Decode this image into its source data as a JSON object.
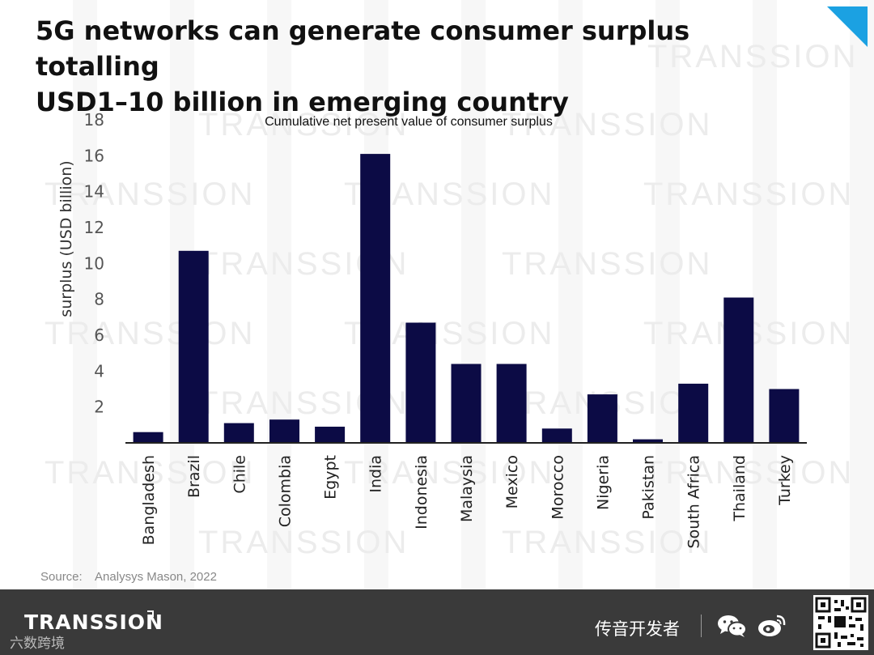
{
  "header": {
    "title_line1": "5G networks can generate consumer surplus totalling",
    "title_line2": "USD1–10 billion in emerging country"
  },
  "watermark_text": "TRANSSION",
  "chart_data": {
    "type": "bar",
    "title": "Cumulative net present value of consumer surplus",
    "xlabel": "",
    "ylabel": "surplus (USD billion)",
    "ylim": [
      0,
      18
    ],
    "yticks": [
      2,
      4,
      6,
      8,
      10,
      12,
      14,
      16,
      18
    ],
    "grid": false,
    "bar_color": "#0c0b45",
    "categories": [
      "Bangladesh",
      "Brazil",
      "Chile",
      "Colombia",
      "Egypt",
      "India",
      "Indonesia",
      "Malaysia",
      "Mexico",
      "Morocco",
      "Nigeria",
      "Pakistan",
      "South Africa",
      "Thailand",
      "Turkey"
    ],
    "values": [
      0.6,
      10.7,
      1.1,
      1.3,
      0.9,
      16.1,
      6.7,
      4.4,
      4.4,
      0.8,
      2.7,
      0.2,
      3.3,
      8.1,
      3.0
    ]
  },
  "source": {
    "label": "Source:",
    "text": "Analysys Mason, 2022"
  },
  "footer": {
    "brand": "TRANSSION",
    "sub_brand": "六数跨境",
    "right_text": "传音开发者",
    "wechat_icon": "wechat-icon",
    "weibo_icon": "weibo-icon",
    "qr_icon": "qr-code"
  }
}
